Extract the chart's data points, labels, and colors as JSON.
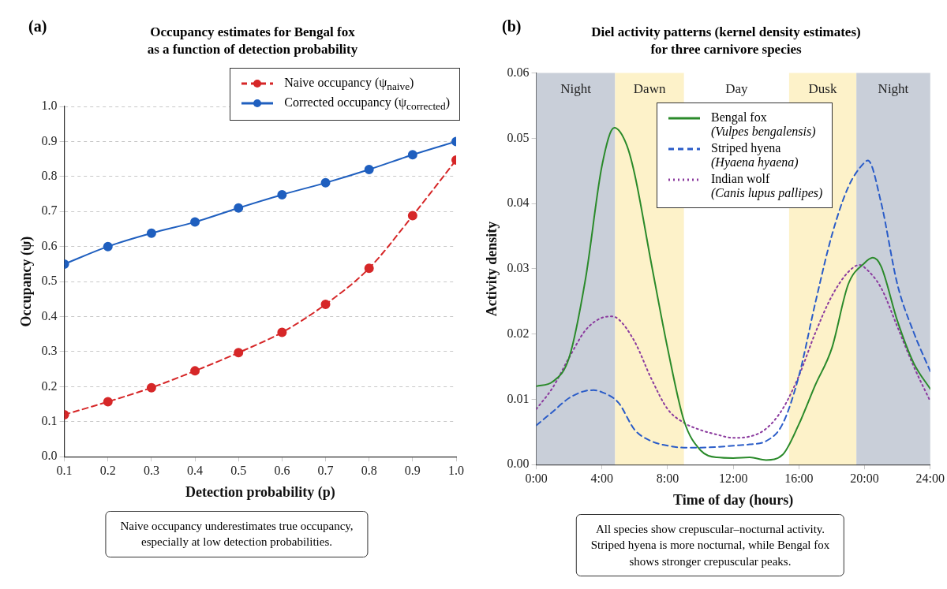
{
  "chart_data": [
    {
      "type": "line",
      "title": "Occupancy estimates for Bengal fox\nas a function of detection probability",
      "xlabel": "Detection probability (p)",
      "ylabel": "Occupancy (ψ)",
      "x": [
        0.1,
        0.2,
        0.3,
        0.4,
        0.5,
        0.6,
        0.7,
        0.8,
        0.9,
        1.0
      ],
      "series": [
        {
          "name": "Naive occupancy (ψ$_{naive}$)",
          "color": "#d62728",
          "line_style": "dashed",
          "values": [
            0.12,
            0.157,
            0.197,
            0.245,
            0.297,
            0.355,
            0.435,
            0.538,
            0.688,
            0.847
          ]
        },
        {
          "name": "Corrected occupancy (ψ$_{corrected}$)",
          "color": "#1f5fbf",
          "line_style": "solid",
          "values": [
            0.55,
            0.6,
            0.638,
            0.67,
            0.71,
            0.748,
            0.782,
            0.82,
            0.862,
            0.9
          ]
        }
      ],
      "xlim": [
        0.1,
        1.0
      ],
      "xticks": [
        {
          "value": 0.1,
          "label": "0.1"
        },
        {
          "value": 0.2,
          "label": "0.2"
        },
        {
          "value": 0.3,
          "label": "0.3"
        },
        {
          "value": 0.4,
          "label": "0.4"
        },
        {
          "value": 0.5,
          "label": "0.5"
        },
        {
          "value": 0.6,
          "label": "0.6"
        },
        {
          "value": 0.7,
          "label": "0.7"
        },
        {
          "value": 0.8,
          "label": "0.8"
        },
        {
          "value": 0.9,
          "label": "0.9"
        },
        {
          "value": 1.0,
          "label": "1.0"
        }
      ],
      "ylim": [
        0,
        1.0
      ],
      "yticks": [
        {
          "value": 0,
          "label": "0.0"
        },
        {
          "value": 0.1,
          "label": "0.1"
        },
        {
          "value": 0.2,
          "label": "0.2"
        },
        {
          "value": 0.3,
          "label": "0.3"
        },
        {
          "value": 0.4,
          "label": "0.4"
        },
        {
          "value": 0.5,
          "label": "0.5"
        },
        {
          "value": 0.6,
          "label": "0.6"
        },
        {
          "value": 0.7,
          "label": "0.7"
        },
        {
          "value": 0.8,
          "label": "0.8"
        },
        {
          "value": 0.9,
          "label": "0.9"
        },
        {
          "value": 1.0,
          "label": "1.0"
        }
      ],
      "grid": "y",
      "legend": "top right",
      "marker": "circle",
      "annotations": [
        "(a)",
        "Naive occupancy underestimates true occupancy,\nespecially at low detection probabilities."
      ]
    },
    {
      "type": "line",
      "title": "Diel activity patterns (kernel density estimates)\nfor three carnivore species",
      "xlabel": "Time of day (hours)",
      "ylabel": "Activity density",
      "x": [
        0,
        1,
        2,
        3,
        4,
        4.75,
        5.5,
        6,
        7,
        8,
        9,
        10,
        11,
        12,
        13,
        14,
        15,
        16,
        17,
        18,
        19,
        20,
        20.5,
        21,
        22,
        23,
        24
      ],
      "series": [
        {
          "name": "Bengal fox\n(Vulpes bengalensis)",
          "color": "#2a8a2a",
          "line_style": "solid",
          "values": [
            0.012,
            0.0127,
            0.0164,
            0.0285,
            0.0458,
            0.0516,
            0.049,
            0.0444,
            0.0309,
            0.0178,
            0.0067,
            0.0022,
            0.0011,
            0.001,
            0.0011,
            0.0007,
            0.0015,
            0.0062,
            0.0122,
            0.0178,
            0.0276,
            0.0309,
            0.0317,
            0.0304,
            0.022,
            0.0155,
            0.0116
          ]
        },
        {
          "name": "Striped hyena\n(Hyaena hyaena)",
          "color": "#2a5cc8",
          "line_style": "dashed",
          "x": [
            0,
            1,
            2,
            3,
            3.5,
            4,
            5,
            6,
            7,
            8,
            9,
            10,
            11,
            12,
            13,
            14,
            15,
            16,
            17,
            18,
            19,
            20,
            20.2,
            21,
            22,
            23,
            24
          ],
          "values": [
            0.006,
            0.0081,
            0.0102,
            0.0113,
            0.0114,
            0.0111,
            0.0095,
            0.0053,
            0.0036,
            0.0029,
            0.0026,
            0.0026,
            0.0027,
            0.0029,
            0.0031,
            0.0036,
            0.0062,
            0.0136,
            0.0248,
            0.0351,
            0.0425,
            0.0463,
            0.0466,
            0.0402,
            0.0276,
            0.0202,
            0.0143
          ]
        },
        {
          "name": "Indian wolf\n(Canis lupus pallipes)",
          "color": "#8b3a9e",
          "line_style": "dotted",
          "x": [
            0,
            1,
            2,
            3,
            4,
            4.6,
            5,
            6,
            7,
            8,
            9,
            10,
            11,
            12,
            13,
            14,
            15,
            16,
            17,
            18,
            19,
            19.7,
            20,
            21,
            22,
            23,
            24
          ],
          "values": [
            0.0085,
            0.0118,
            0.0164,
            0.0206,
            0.0225,
            0.0227,
            0.0223,
            0.0188,
            0.0132,
            0.0085,
            0.0064,
            0.0053,
            0.0046,
            0.0041,
            0.0043,
            0.0055,
            0.0085,
            0.0136,
            0.0202,
            0.0258,
            0.0295,
            0.0306,
            0.0302,
            0.0271,
            0.0211,
            0.015,
            0.0097
          ]
        }
      ],
      "xlim": [
        0,
        24
      ],
      "xticks": [
        {
          "value": 0,
          "label": "0:00"
        },
        {
          "value": 4,
          "label": "4:00"
        },
        {
          "value": 8,
          "label": "8:00"
        },
        {
          "value": 12,
          "label": "12:00"
        },
        {
          "value": 16,
          "label": "16:00"
        },
        {
          "value": 20,
          "label": "20:00"
        },
        {
          "value": 24,
          "label": "24:00"
        }
      ],
      "ylim": [
        0,
        0.06
      ],
      "yticks": [
        {
          "value": 0,
          "label": "0.00"
        },
        {
          "value": 0.01,
          "label": "0.01"
        },
        {
          "value": 0.02,
          "label": "0.02"
        },
        {
          "value": 0.03,
          "label": "0.03"
        },
        {
          "value": 0.04,
          "label": "0.04"
        },
        {
          "value": 0.05,
          "label": "0.05"
        },
        {
          "value": 0.06,
          "label": "0.06"
        }
      ],
      "bands": [
        {
          "axis": "x",
          "from": 0,
          "to": 4.8,
          "label": "Night",
          "color": "#c9cfd9"
        },
        {
          "axis": "x",
          "from": 4.8,
          "to": 9,
          "label": "Dawn",
          "color": "#fdf2c9"
        },
        {
          "axis": "x",
          "from": 9,
          "to": 15.4,
          "label": "Day",
          "color": "#ffffff"
        },
        {
          "axis": "x",
          "from": 15.4,
          "to": 19.5,
          "label": "Dusk",
          "color": "#fdf2c9"
        },
        {
          "axis": "x",
          "from": 19.5,
          "to": 24,
          "label": "Night",
          "color": "#c9cfd9"
        }
      ],
      "legend": "top",
      "annotations": [
        "(b)",
        "All species show crepuscular–nocturnal activity.\nStriped hyena is more nocturnal, while Bengal fox\nshows stronger crepuscular peaks."
      ]
    }
  ]
}
